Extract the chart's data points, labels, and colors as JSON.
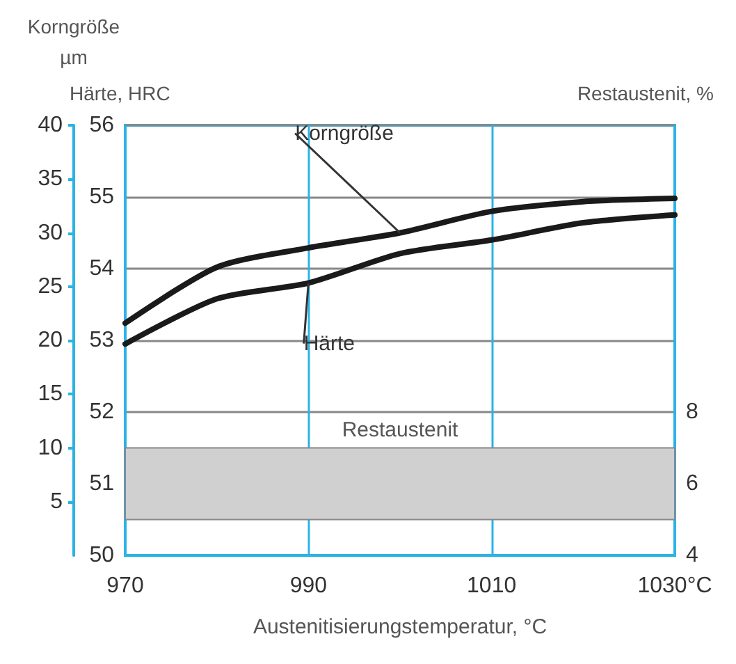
{
  "chart_data": {
    "type": "line",
    "xlabel": "Austenitisierungstemperatur, °C",
    "ylabel": "Korngröße\nµm",
    "y2label": "Härte, HRC",
    "y3label": "Restaustenit, %",
    "x": [
      970,
      980,
      990,
      1000,
      1010,
      1020,
      1030
    ],
    "xlim": [
      970,
      1030
    ],
    "xticks": [
      970,
      990,
      1010,
      {
        "value": 1030,
        "label": "1030°C"
      }
    ],
    "ylim": [
      0,
      40
    ],
    "yticks": [
      5,
      10,
      15,
      20,
      25,
      30,
      35,
      40
    ],
    "y2lim": [
      50,
      56
    ],
    "y2ticks": [
      50,
      51,
      52,
      53,
      54,
      55,
      56
    ],
    "y3lim": [
      4,
      16
    ],
    "y3ticks": [
      4,
      6,
      8
    ],
    "series": [
      {
        "name": "Korngröße",
        "color": "#1a1a1a",
        "values": [
          21.6,
          26.8,
          28.6,
          30.0,
          32.0,
          32.9,
          33.2
        ]
      },
      {
        "name": "Härte",
        "color": "#1a1a1a",
        "axis": "y2",
        "values": [
          52.95,
          53.58,
          53.8,
          54.21,
          54.4,
          54.64,
          54.75
        ]
      }
    ],
    "bands": [
      {
        "axis": "y3",
        "from": 5,
        "to": 7,
        "label": "Restaustenit",
        "color": "#d0d0d0"
      }
    ],
    "grid": true,
    "marker": "none",
    "line_style": "solid",
    "legend": false
  }
}
